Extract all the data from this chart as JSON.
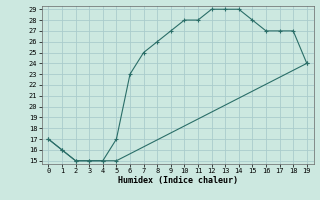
{
  "title": "",
  "xlabel": "Humidex (Indice chaleur)",
  "ylabel": "",
  "bg_color": "#cce8e0",
  "grid_color": "#aacccc",
  "line_color": "#2a6e68",
  "upper_x": [
    0,
    1,
    2,
    3,
    4,
    5,
    6,
    7,
    8,
    9,
    10,
    11,
    12,
    13,
    14,
    15,
    16,
    17,
    18,
    19
  ],
  "upper_y": [
    17,
    16,
    15,
    15,
    15,
    17,
    23,
    25,
    26,
    27,
    28,
    28,
    29,
    29,
    29,
    28,
    27,
    27,
    27,
    24
  ],
  "lower_x": [
    0,
    1,
    2,
    3,
    4,
    5,
    19
  ],
  "lower_y": [
    17,
    16,
    15,
    15,
    15,
    15,
    24
  ],
  "xmin": -0.5,
  "xmax": 19.5,
  "ymin": 15,
  "ymax": 29,
  "xticks": [
    0,
    1,
    2,
    3,
    4,
    5,
    6,
    7,
    8,
    9,
    10,
    11,
    12,
    13,
    14,
    15,
    16,
    17,
    18,
    19
  ],
  "yticks": [
    15,
    16,
    17,
    18,
    19,
    20,
    21,
    22,
    23,
    24,
    25,
    26,
    27,
    28,
    29
  ],
  "marker": "+"
}
